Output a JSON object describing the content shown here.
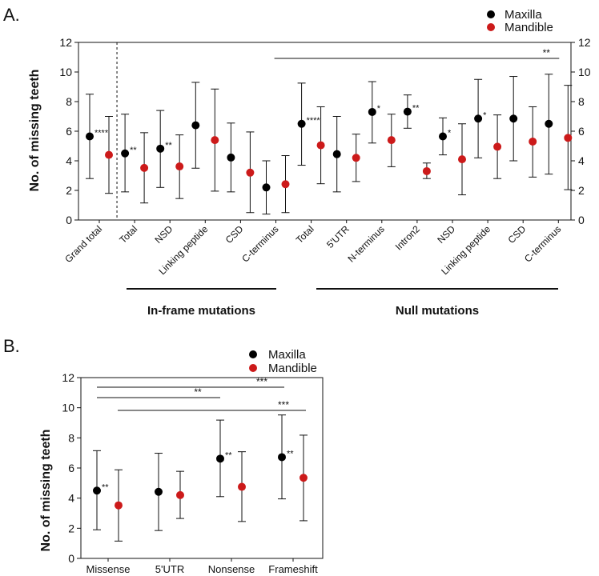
{
  "chart_data": [
    {
      "type": "scatter",
      "panel_label": "A.",
      "ylabel": "No. of missing teeth",
      "ylim": [
        0,
        12
      ],
      "yticks": [
        0,
        2,
        4,
        6,
        8,
        10,
        12
      ],
      "categories": [
        "Grand total",
        "Total",
        "NSD",
        "Linking peptide",
        "CSD",
        "C-terminus",
        "Total",
        "5'UTR",
        "N-terminus",
        "Intron2",
        "NSD",
        "Linking peptide",
        "CSD",
        "C-terminus"
      ],
      "series": [
        {
          "name": "Maxilla",
          "color": "#000000",
          "mean": [
            5.65,
            4.5,
            4.82,
            6.4,
            4.22,
            2.2,
            6.5,
            4.45,
            7.3,
            7.32,
            5.65,
            6.85,
            6.85,
            6.5
          ],
          "lower": [
            2.8,
            1.9,
            2.2,
            3.5,
            1.9,
            0.4,
            3.7,
            1.9,
            5.2,
            6.2,
            4.4,
            4.2,
            4.0,
            3.1
          ],
          "upper": [
            8.5,
            7.15,
            7.4,
            9.3,
            6.55,
            4.0,
            9.25,
            7.0,
            9.35,
            8.45,
            6.9,
            9.5,
            9.7,
            9.85
          ]
        },
        {
          "name": "Mandible",
          "color": "#cc1a1a",
          "mean": [
            4.4,
            3.52,
            3.62,
            5.4,
            3.2,
            2.42,
            5.05,
            4.2,
            5.4,
            3.3,
            4.1,
            4.95,
            5.3,
            5.55
          ],
          "lower": [
            1.8,
            1.15,
            1.45,
            1.95,
            0.5,
            0.5,
            2.45,
            2.6,
            3.6,
            2.8,
            1.7,
            2.8,
            2.9,
            2.05
          ],
          "upper": [
            7.0,
            5.9,
            5.75,
            8.85,
            5.95,
            4.35,
            7.65,
            5.8,
            7.15,
            3.85,
            6.5,
            7.1,
            7.65,
            9.1
          ]
        }
      ],
      "annotations": [
        "****",
        "**",
        "**",
        "",
        "",
        "",
        "****",
        "",
        "*",
        "**",
        "*",
        "*",
        "",
        ""
      ],
      "brackets": [
        {
          "from": 6,
          "to": 13,
          "label": "**"
        }
      ],
      "groups": [
        {
          "label": "In-frame mutations",
          "from": 1,
          "to": 5
        },
        {
          "label": "Null mutations",
          "from": 6,
          "to": 13
        }
      ],
      "legend_position": "top-right"
    },
    {
      "type": "scatter",
      "panel_label": "B.",
      "ylabel": "No. of missing teeth",
      "ylim": [
        0,
        12
      ],
      "yticks": [
        0,
        2,
        4,
        6,
        8,
        10,
        12
      ],
      "categories": [
        "Missense",
        "5'UTR",
        "Nonsense",
        "Frameshift"
      ],
      "series": [
        {
          "name": "Maxilla",
          "color": "#000000",
          "mean": [
            4.5,
            4.42,
            6.62,
            6.72
          ],
          "lower": [
            1.9,
            1.85,
            4.1,
            3.95
          ],
          "upper": [
            7.15,
            6.98,
            9.18,
            9.52
          ]
        },
        {
          "name": "Mandible",
          "color": "#cc1a1a",
          "mean": [
            3.52,
            4.2,
            4.75,
            5.35
          ],
          "lower": [
            1.15,
            2.65,
            2.45,
            2.5
          ],
          "upper": [
            5.88,
            5.78,
            7.08,
            8.18
          ]
        }
      ],
      "annotations": [
        "**",
        "",
        "**",
        "**"
      ],
      "brackets": [
        {
          "from": 0,
          "to": 3,
          "label": "***"
        },
        {
          "from": 0,
          "to": 2,
          "label": "**"
        },
        {
          "from": 0,
          "to": 3,
          "label": "***"
        }
      ],
      "legend_position": "top-center"
    }
  ]
}
